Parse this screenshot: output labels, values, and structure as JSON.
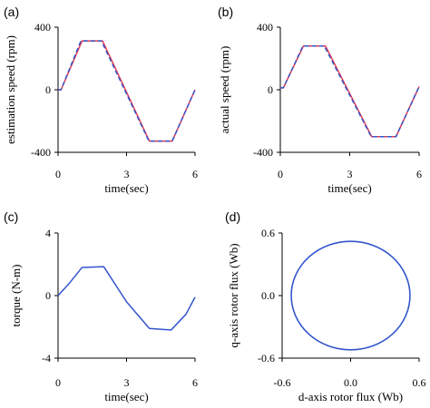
{
  "chart_data": [
    {
      "id": "a",
      "panel_label": "(a)",
      "type": "line",
      "xlabel": "time(sec)",
      "ylabel": "estimation speed (rpm)",
      "xlim": [
        0,
        6
      ],
      "ylim": [
        -400,
        400
      ],
      "xticks": [
        0,
        3,
        6
      ],
      "yticks": [
        -400,
        0,
        400
      ],
      "xtick_labels": [
        "0",
        "3",
        "6"
      ],
      "ytick_labels": [
        "-400",
        "0",
        "400"
      ],
      "series": [
        {
          "color": "#e8384f",
          "dash": false,
          "x": [
            0,
            0.13,
            1.05,
            1.95,
            4.0,
            5.0,
            6.0
          ],
          "y": [
            0,
            0,
            312,
            312,
            -328,
            -328,
            0
          ]
        },
        {
          "color": "#3355cc",
          "dash": true,
          "x": [
            0,
            0.13,
            1.0,
            1.9,
            3.98,
            5.0,
            6.0
          ],
          "y": [
            0,
            0,
            312,
            312,
            -328,
            -328,
            0
          ]
        }
      ]
    },
    {
      "id": "b",
      "panel_label": "(b)",
      "type": "line",
      "xlabel": "time(sec)",
      "ylabel": "actual speed (rpm)",
      "xlim": [
        0,
        6
      ],
      "ylim": [
        -400,
        400
      ],
      "xticks": [
        0,
        3,
        6
      ],
      "yticks": [
        -400,
        0,
        400
      ],
      "xtick_labels": [
        "0",
        "3",
        "6"
      ],
      "ytick_labels": [
        "-400",
        "0",
        "400"
      ],
      "series": [
        {
          "color": "#e8384f",
          "dash": false,
          "x": [
            0,
            0.13,
            1.0,
            1.95,
            3.95,
            5.0,
            6.0
          ],
          "y": [
            12,
            12,
            280,
            280,
            -300,
            -300,
            20
          ]
        },
        {
          "color": "#3355cc",
          "dash": true,
          "x": [
            0,
            0.13,
            0.98,
            1.9,
            3.93,
            5.0,
            6.0
          ],
          "y": [
            12,
            12,
            280,
            280,
            -300,
            -300,
            20
          ]
        }
      ]
    },
    {
      "id": "c",
      "panel_label": "(c)",
      "type": "line",
      "xlabel": "time(sec)",
      "ylabel": "torque (N-m)",
      "xlim": [
        0,
        6
      ],
      "ylim": [
        -4,
        4
      ],
      "xticks": [
        0,
        3,
        6
      ],
      "yticks": [
        -4,
        0,
        4
      ],
      "xtick_labels": [
        "0",
        "3",
        "6"
      ],
      "ytick_labels": [
        "-4",
        "0",
        "4"
      ],
      "series": [
        {
          "color": "#3355cc",
          "dash": false,
          "x": [
            0,
            0.5,
            1.05,
            2.0,
            3.0,
            4.0,
            4.95,
            5.6,
            6.0
          ],
          "y": [
            0,
            0.8,
            1.8,
            1.85,
            -0.4,
            -2.1,
            -2.2,
            -1.2,
            -0.1
          ]
        }
      ]
    },
    {
      "id": "d",
      "panel_label": "(d)",
      "type": "scatter",
      "xlabel": "d-axis rotor flux (Wb)",
      "ylabel": "q-axis rotor flux (Wb)",
      "xlim": [
        -0.6,
        0.6
      ],
      "ylim": [
        -0.6,
        0.6
      ],
      "xticks": [
        -0.6,
        0.0,
        0.6
      ],
      "yticks": [
        -0.6,
        0.0,
        0.6
      ],
      "xtick_labels": [
        "-0.6",
        "0.0",
        "0.6"
      ],
      "ytick_labels": [
        "-0.6",
        "0.0",
        "0.6"
      ],
      "circle": {
        "cx": 0.0,
        "cy": 0.0,
        "r": 0.52,
        "color": "#3355cc"
      }
    }
  ]
}
